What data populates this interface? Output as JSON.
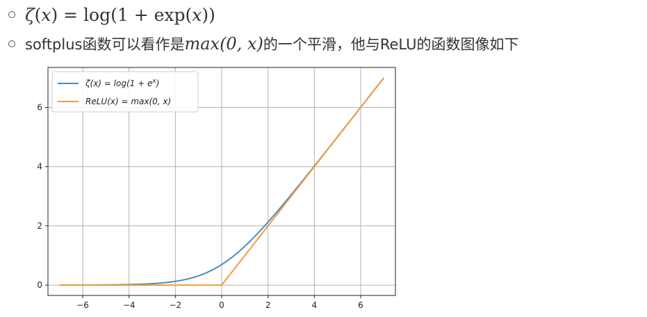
{
  "text": {
    "line1": {
      "zeta": "ζ",
      "x_open": "(",
      "x_var": "x",
      "x_close": ")",
      "eq": " = ",
      "log": "log",
      "rest": "(1 + exp(",
      "x_var2": "x",
      "end": "))"
    },
    "line2": {
      "pre": "softplus函数可以看作是",
      "math": "max(0, x)",
      "post": "的一个平滑，他与ReLU的函数图像如下"
    }
  },
  "chart_data": {
    "type": "line",
    "xlim": [
      -7.5,
      7.5
    ],
    "ylim": [
      -0.35,
      7.35
    ],
    "xticks": [
      -6,
      -4,
      -2,
      0,
      2,
      4,
      6
    ],
    "yticks": [
      0,
      2,
      4,
      6
    ],
    "xtick_labels": [
      "−6",
      "−4",
      "−2",
      "0",
      "2",
      "4",
      "6"
    ],
    "ytick_labels": [
      "0",
      "2",
      "4",
      "6"
    ],
    "grid": true,
    "legend_position": "top-left",
    "series": [
      {
        "name": "ζ(x) = log(1 + e^x)",
        "legend_main": "ζ(x) = log(1 + e",
        "legend_sup": "x",
        "legend_end": ")",
        "color": "#4c8ac2",
        "function": "softplus",
        "x_range": [
          -7,
          7
        ]
      },
      {
        "name": "ReLU(x) = max(0, x)",
        "legend_main": "ReLU(x) = max(0, x)",
        "color": "#f39a3f",
        "function": "relu",
        "x_range": [
          -7,
          7
        ]
      }
    ]
  }
}
